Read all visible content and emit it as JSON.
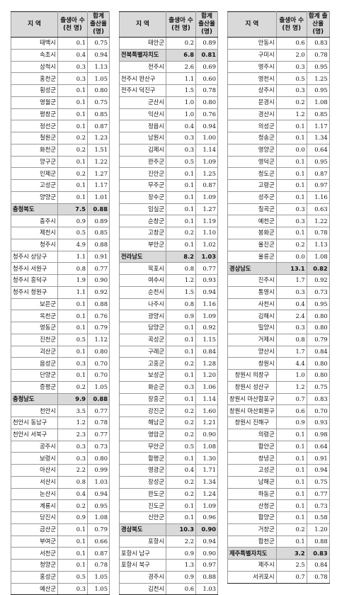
{
  "headers": {
    "region": "지 역",
    "births": "출생아 수 (천 명)",
    "tfr": "합계 출산율 (명)"
  },
  "columns": [
    [
      {
        "name": "태백시",
        "births": "0.1",
        "tfr": "0.75",
        "style": "r"
      },
      {
        "name": "속초시",
        "births": "0.4",
        "tfr": "0.94",
        "style": "r"
      },
      {
        "name": "삼척시",
        "births": "0.3",
        "tfr": "1.13",
        "style": "r"
      },
      {
        "name": "홍천군",
        "births": "0.3",
        "tfr": "1.05",
        "style": "r"
      },
      {
        "name": "횡성군",
        "births": "0.1",
        "tfr": "0.80",
        "style": "r"
      },
      {
        "name": "영월군",
        "births": "0.1",
        "tfr": "0.75",
        "style": "r"
      },
      {
        "name": "평창군",
        "births": "0.1",
        "tfr": "0.85",
        "style": "r"
      },
      {
        "name": "정선군",
        "births": "0.1",
        "tfr": "0.87",
        "style": "r"
      },
      {
        "name": "철원군",
        "births": "0.2",
        "tfr": "1.23",
        "style": "r"
      },
      {
        "name": "화천군",
        "births": "0.2",
        "tfr": "1.51",
        "style": "r"
      },
      {
        "name": "양구군",
        "births": "0.1",
        "tfr": "1.22",
        "style": "r"
      },
      {
        "name": "인제군",
        "births": "0.2",
        "tfr": "1.27",
        "style": "r"
      },
      {
        "name": "고성군",
        "births": "0.1",
        "tfr": "1.17",
        "style": "r"
      },
      {
        "name": "양양군",
        "births": "0.1",
        "tfr": "1.01",
        "style": "r"
      },
      {
        "name": "충청북도",
        "births": "7.5",
        "tfr": "0.88",
        "style": "prov"
      },
      {
        "name": "충주시",
        "births": "0.9",
        "tfr": "0.89",
        "style": "r"
      },
      {
        "name": "제천시",
        "births": "0.5",
        "tfr": "0.85",
        "style": "r"
      },
      {
        "name": "청주시",
        "births": "4.9",
        "tfr": "0.88",
        "style": "r"
      },
      {
        "name": "청주시 상당구",
        "births": "1.1",
        "tfr": "0.91",
        "style": "l"
      },
      {
        "name": "청주시 서원구",
        "births": "0.8",
        "tfr": "0.77",
        "style": "l"
      },
      {
        "name": "청주시 흥덕구",
        "births": "1.9",
        "tfr": "0.90",
        "style": "l"
      },
      {
        "name": "청주시 청원구",
        "births": "1.1",
        "tfr": "0.92",
        "style": "l"
      },
      {
        "name": "보은군",
        "births": "0.1",
        "tfr": "0.88",
        "style": "r"
      },
      {
        "name": "옥천군",
        "births": "0.1",
        "tfr": "0.76",
        "style": "r"
      },
      {
        "name": "영동군",
        "births": "0.1",
        "tfr": "0.79",
        "style": "r"
      },
      {
        "name": "진천군",
        "births": "0.5",
        "tfr": "1.12",
        "style": "r"
      },
      {
        "name": "괴산군",
        "births": "0.1",
        "tfr": "0.80",
        "style": "r"
      },
      {
        "name": "음성군",
        "births": "0.3",
        "tfr": "0.70",
        "style": "r"
      },
      {
        "name": "단양군",
        "births": "0.1",
        "tfr": "0.70",
        "style": "r"
      },
      {
        "name": "증평군",
        "births": "0.2",
        "tfr": "1.05",
        "style": "r"
      },
      {
        "name": "충청남도",
        "births": "9.9",
        "tfr": "0.88",
        "style": "prov"
      },
      {
        "name": "천안시",
        "births": "3.5",
        "tfr": "0.77",
        "style": "r"
      },
      {
        "name": "천안시 동남구",
        "births": "1.2",
        "tfr": "0.78",
        "style": "l"
      },
      {
        "name": "천안시 서북구",
        "births": "2.3",
        "tfr": "0.77",
        "style": "l"
      },
      {
        "name": "공주시",
        "births": "0.3",
        "tfr": "0.73",
        "style": "r"
      },
      {
        "name": "보령시",
        "births": "0.3",
        "tfr": "0.80",
        "style": "r"
      },
      {
        "name": "아산시",
        "births": "2.2",
        "tfr": "0.99",
        "style": "r"
      },
      {
        "name": "서산시",
        "births": "0.8",
        "tfr": "1.03",
        "style": "r"
      },
      {
        "name": "논산시",
        "births": "0.4",
        "tfr": "0.94",
        "style": "r"
      },
      {
        "name": "계룡시",
        "births": "0.2",
        "tfr": "0.95",
        "style": "r"
      },
      {
        "name": "당진시",
        "births": "0.9",
        "tfr": "1.08",
        "style": "r"
      },
      {
        "name": "금산군",
        "births": "0.1",
        "tfr": "0.79",
        "style": "r"
      },
      {
        "name": "부여군",
        "births": "0.1",
        "tfr": "0.66",
        "style": "r"
      },
      {
        "name": "서천군",
        "births": "0.1",
        "tfr": "0.87",
        "style": "r"
      },
      {
        "name": "청양군",
        "births": "0.1",
        "tfr": "0.78",
        "style": "r"
      },
      {
        "name": "홍성군",
        "births": "0.5",
        "tfr": "1.05",
        "style": "r"
      },
      {
        "name": "예산군",
        "births": "0.3",
        "tfr": "1.05",
        "style": "r"
      }
    ],
    [
      {
        "name": "태안군",
        "births": "0.2",
        "tfr": "0.89",
        "style": "r"
      },
      {
        "name": "전북특별자치도",
        "births": "6.8",
        "tfr": "0.81",
        "style": "prov"
      },
      {
        "name": "전주시",
        "births": "2.6",
        "tfr": "0.69",
        "style": "r"
      },
      {
        "name": "전주시 완산구",
        "births": "1.1",
        "tfr": "0.60",
        "style": "l"
      },
      {
        "name": "전주시 덕진구",
        "births": "1.5",
        "tfr": "0.78",
        "style": "l"
      },
      {
        "name": "군산시",
        "births": "1.0",
        "tfr": "0.80",
        "style": "r"
      },
      {
        "name": "익산시",
        "births": "1.0",
        "tfr": "0.76",
        "style": "r"
      },
      {
        "name": "정읍시",
        "births": "0.4",
        "tfr": "0.94",
        "style": "r"
      },
      {
        "name": "남원시",
        "births": "0.3",
        "tfr": "1.00",
        "style": "r"
      },
      {
        "name": "김제시",
        "births": "0.3",
        "tfr": "1.14",
        "style": "r"
      },
      {
        "name": "완주군",
        "births": "0.5",
        "tfr": "1.09",
        "style": "r"
      },
      {
        "name": "진안군",
        "births": "0.1",
        "tfr": "1.25",
        "style": "r"
      },
      {
        "name": "무주군",
        "births": "0.1",
        "tfr": "0.87",
        "style": "r"
      },
      {
        "name": "장수군",
        "births": "0.1",
        "tfr": "1.09",
        "style": "r"
      },
      {
        "name": "임실군",
        "births": "0.1",
        "tfr": "1.27",
        "style": "r"
      },
      {
        "name": "순창군",
        "births": "0.1",
        "tfr": "1.19",
        "style": "r"
      },
      {
        "name": "고창군",
        "births": "0.2",
        "tfr": "1.10",
        "style": "r"
      },
      {
        "name": "부안군",
        "births": "0.1",
        "tfr": "1.02",
        "style": "r"
      },
      {
        "name": "전라남도",
        "births": "8.2",
        "tfr": "1.03",
        "style": "prov"
      },
      {
        "name": "목포시",
        "births": "0.8",
        "tfr": "0.77",
        "style": "r"
      },
      {
        "name": "여수시",
        "births": "1.2",
        "tfr": "0.93",
        "style": "r"
      },
      {
        "name": "순천시",
        "births": "1.5",
        "tfr": "0.94",
        "style": "r"
      },
      {
        "name": "나주시",
        "births": "0.8",
        "tfr": "1.16",
        "style": "r"
      },
      {
        "name": "광양시",
        "births": "0.9",
        "tfr": "1.09",
        "style": "r"
      },
      {
        "name": "담양군",
        "births": "0.1",
        "tfr": "0.92",
        "style": "r"
      },
      {
        "name": "곡성군",
        "births": "0.1",
        "tfr": "1.15",
        "style": "r"
      },
      {
        "name": "구례군",
        "births": "0.1",
        "tfr": "0.84",
        "style": "r"
      },
      {
        "name": "고흥군",
        "births": "0.2",
        "tfr": "1.28",
        "style": "r"
      },
      {
        "name": "보성군",
        "births": "0.1",
        "tfr": "1.20",
        "style": "r"
      },
      {
        "name": "화순군",
        "births": "0.3",
        "tfr": "1.06",
        "style": "r"
      },
      {
        "name": "장흥군",
        "births": "0.1",
        "tfr": "1.14",
        "style": "r"
      },
      {
        "name": "강진군",
        "births": "0.2",
        "tfr": "1.60",
        "style": "r"
      },
      {
        "name": "해남군",
        "births": "0.2",
        "tfr": "1.21",
        "style": "r"
      },
      {
        "name": "영암군",
        "births": "0.2",
        "tfr": "0.90",
        "style": "r"
      },
      {
        "name": "무안군",
        "births": "0.5",
        "tfr": "1.08",
        "style": "r"
      },
      {
        "name": "함평군",
        "births": "0.1",
        "tfr": "1.30",
        "style": "r"
      },
      {
        "name": "영광군",
        "births": "0.4",
        "tfr": "1.71",
        "style": "r"
      },
      {
        "name": "장성군",
        "births": "0.2",
        "tfr": "1.34",
        "style": "r"
      },
      {
        "name": "완도군",
        "births": "0.2",
        "tfr": "1.24",
        "style": "r"
      },
      {
        "name": "진도군",
        "births": "0.1",
        "tfr": "1.09",
        "style": "r"
      },
      {
        "name": "신안군",
        "births": "0.1",
        "tfr": "0.96",
        "style": "r"
      },
      {
        "name": "경상북도",
        "births": "10.3",
        "tfr": "0.90",
        "style": "prov"
      },
      {
        "name": "포항시",
        "births": "2.2",
        "tfr": "0.94",
        "style": "r"
      },
      {
        "name": "포항시 남구",
        "births": "0.9",
        "tfr": "0.90",
        "style": "l"
      },
      {
        "name": "포항시 북구",
        "births": "1.3",
        "tfr": "0.97",
        "style": "l"
      },
      {
        "name": "경주시",
        "births": "0.9",
        "tfr": "0.88",
        "style": "r"
      },
      {
        "name": "김천시",
        "births": "0.6",
        "tfr": "1.03",
        "style": "r"
      }
    ],
    [
      {
        "name": "안동시",
        "births": "0.6",
        "tfr": "0.83",
        "style": "r"
      },
      {
        "name": "구미시",
        "births": "2.0",
        "tfr": "0.78",
        "style": "r"
      },
      {
        "name": "영주시",
        "births": "0.3",
        "tfr": "0.95",
        "style": "r"
      },
      {
        "name": "영천시",
        "births": "0.5",
        "tfr": "1.25",
        "style": "r"
      },
      {
        "name": "상주시",
        "births": "0.3",
        "tfr": "0.95",
        "style": "r"
      },
      {
        "name": "문경시",
        "births": "0.2",
        "tfr": "1.08",
        "style": "r"
      },
      {
        "name": "경산시",
        "births": "1.2",
        "tfr": "0.85",
        "style": "r"
      },
      {
        "name": "의성군",
        "births": "0.1",
        "tfr": "1.17",
        "style": "r"
      },
      {
        "name": "청송군",
        "births": "0.1",
        "tfr": "1.34",
        "style": "r"
      },
      {
        "name": "영양군",
        "births": "0.0",
        "tfr": "0.64",
        "style": "r"
      },
      {
        "name": "영덕군",
        "births": "0.1",
        "tfr": "0.95",
        "style": "r"
      },
      {
        "name": "청도군",
        "births": "0.1",
        "tfr": "0.87",
        "style": "r"
      },
      {
        "name": "고령군",
        "births": "0.1",
        "tfr": "0.97",
        "style": "r"
      },
      {
        "name": "성주군",
        "births": "0.1",
        "tfr": "1.16",
        "style": "r"
      },
      {
        "name": "칠곡군",
        "births": "0.3",
        "tfr": "0.63",
        "style": "r"
      },
      {
        "name": "예천군",
        "births": "0.3",
        "tfr": "1.22",
        "style": "r"
      },
      {
        "name": "봉화군",
        "births": "0.1",
        "tfr": "0.78",
        "style": "r"
      },
      {
        "name": "울진군",
        "births": "0.2",
        "tfr": "1.13",
        "style": "r"
      },
      {
        "name": "울릉군",
        "births": "0.0",
        "tfr": "1.08",
        "style": "r"
      },
      {
        "name": "경상남도",
        "births": "13.1",
        "tfr": "0.82",
        "style": "prov"
      },
      {
        "name": "진주시",
        "births": "1.7",
        "tfr": "0.92",
        "style": "r"
      },
      {
        "name": "통영시",
        "births": "0.3",
        "tfr": "0.73",
        "style": "r"
      },
      {
        "name": "사천시",
        "births": "0.4",
        "tfr": "0.95",
        "style": "r"
      },
      {
        "name": "김해시",
        "births": "2.4",
        "tfr": "0.80",
        "style": "r"
      },
      {
        "name": "밀양시",
        "births": "0.3",
        "tfr": "0.80",
        "style": "r"
      },
      {
        "name": "거제시",
        "births": "0.8",
        "tfr": "0.79",
        "style": "r"
      },
      {
        "name": "양산시",
        "births": "1.7",
        "tfr": "0.84",
        "style": "r"
      },
      {
        "name": "창원시",
        "births": "4.4",
        "tfr": "0.80",
        "style": "r"
      },
      {
        "name": "창원시 의창구",
        "births": "1.0",
        "tfr": "0.80",
        "style": "c"
      },
      {
        "name": "창원시 성산구",
        "births": "1.2",
        "tfr": "0.75",
        "style": "c"
      },
      {
        "name": "창원시 마산합포구",
        "births": "0.7",
        "tfr": "0.83",
        "style": "c"
      },
      {
        "name": "창원시 마산회원구",
        "births": "0.6",
        "tfr": "0.70",
        "style": "c"
      },
      {
        "name": "창원시 진해구",
        "births": "0.9",
        "tfr": "0.93",
        "style": "c"
      },
      {
        "name": "의령군",
        "births": "0.1",
        "tfr": "0.98",
        "style": "r"
      },
      {
        "name": "함안군",
        "births": "0.1",
        "tfr": "0.64",
        "style": "r"
      },
      {
        "name": "창녕군",
        "births": "0.1",
        "tfr": "0.91",
        "style": "r"
      },
      {
        "name": "고성군",
        "births": "0.1",
        "tfr": "0.94",
        "style": "r"
      },
      {
        "name": "남해군",
        "births": "0.1",
        "tfr": "0.75",
        "style": "r"
      },
      {
        "name": "하동군",
        "births": "0.1",
        "tfr": "0.77",
        "style": "r"
      },
      {
        "name": "산청군",
        "births": "0.1",
        "tfr": "0.73",
        "style": "r"
      },
      {
        "name": "함양군",
        "births": "0.1",
        "tfr": "0.58",
        "style": "r"
      },
      {
        "name": "거창군",
        "births": "0.2",
        "tfr": "1.20",
        "style": "r"
      },
      {
        "name": "합천군",
        "births": "0.1",
        "tfr": "0.88",
        "style": "r"
      },
      {
        "name": "제주특별자치도",
        "births": "3.2",
        "tfr": "0.83",
        "style": "prov"
      },
      {
        "name": "제주시",
        "births": "2.5",
        "tfr": "0.84",
        "style": "r"
      },
      {
        "name": "서귀포시",
        "births": "0.7",
        "tfr": "0.78",
        "style": "r"
      }
    ]
  ]
}
